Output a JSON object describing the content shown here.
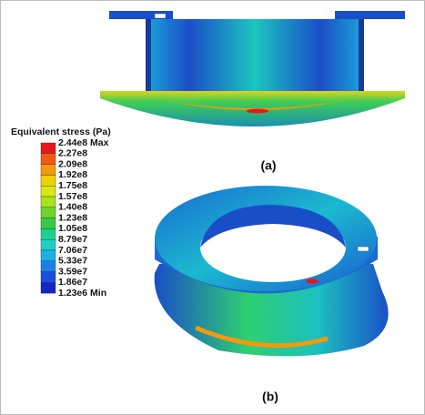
{
  "legend": {
    "title": "Equivalent stress (Pa)",
    "labels": [
      "2.44e8 Max",
      "2.27e8",
      "2.09e8",
      "1.92e8",
      "1.75e8",
      "1.57e8",
      "1.40e8",
      "1.23e8",
      "1.05e8",
      "8.79e7",
      "7.06e7",
      "5.33e7",
      "3.59e7",
      "1.86e7",
      "1.23e6 Min"
    ],
    "colors": [
      "#e8161a",
      "#f05a12",
      "#f39a0c",
      "#efcf0a",
      "#d7ea10",
      "#a6e21e",
      "#6fd62b",
      "#35cc45",
      "#1fcf8f",
      "#1bd1c6",
      "#1ab2e6",
      "#1b80e8",
      "#1a4ee0",
      "#1424c8"
    ]
  },
  "panels": [
    {
      "label": "(a)"
    },
    {
      "label": "(b)"
    }
  ]
}
